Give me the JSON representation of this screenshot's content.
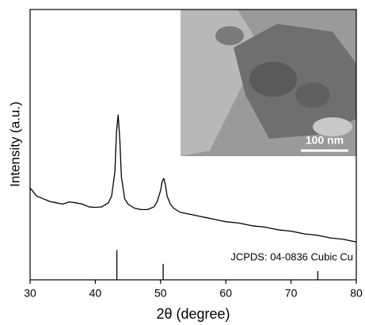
{
  "chart_data": {
    "type": "line",
    "x_label": "2θ (degree)",
    "y_label": "Intensity (a.u.)",
    "xlim": [
      30,
      80
    ],
    "xticks": [
      30,
      40,
      50,
      60,
      70,
      80
    ],
    "ylim": [
      0,
      100
    ],
    "series": [
      {
        "color": "#000000",
        "x": [
          30,
          31,
          32,
          33,
          34,
          35,
          36,
          37,
          38,
          39,
          40,
          41,
          42,
          42.5,
          43,
          43.25,
          43.5,
          43.75,
          44,
          44.5,
          45,
          46,
          47,
          48,
          49,
          49.5,
          50,
          50.25,
          50.5,
          50.75,
          51,
          51.5,
          52,
          53,
          54,
          55,
          56,
          57,
          58,
          59,
          60,
          62,
          64,
          66,
          68,
          70,
          72,
          74,
          76,
          78,
          80
        ],
        "values": [
          34,
          31,
          30,
          29,
          28.5,
          28,
          28.8,
          28.5,
          28,
          27,
          26.8,
          27,
          28.5,
          31,
          40,
          55,
          61,
          52,
          38,
          30,
          28,
          26.5,
          26,
          26,
          27,
          29,
          33,
          36.5,
          37.5,
          35,
          31,
          28,
          26.5,
          25,
          24.5,
          24,
          23.5,
          23,
          22.5,
          22,
          21.5,
          21,
          20,
          19.5,
          18.5,
          18,
          17,
          16.5,
          15.5,
          15,
          14
        ]
      }
    ],
    "reference": {
      "name": "JCPDS: 04-0836 Cubic Cu",
      "color": "#000000",
      "x": [
        43.3,
        50.4,
        74.1
      ],
      "values": [
        11,
        5.9,
        3.2
      ]
    },
    "inset": {
      "scale_label": "100 nm"
    }
  }
}
